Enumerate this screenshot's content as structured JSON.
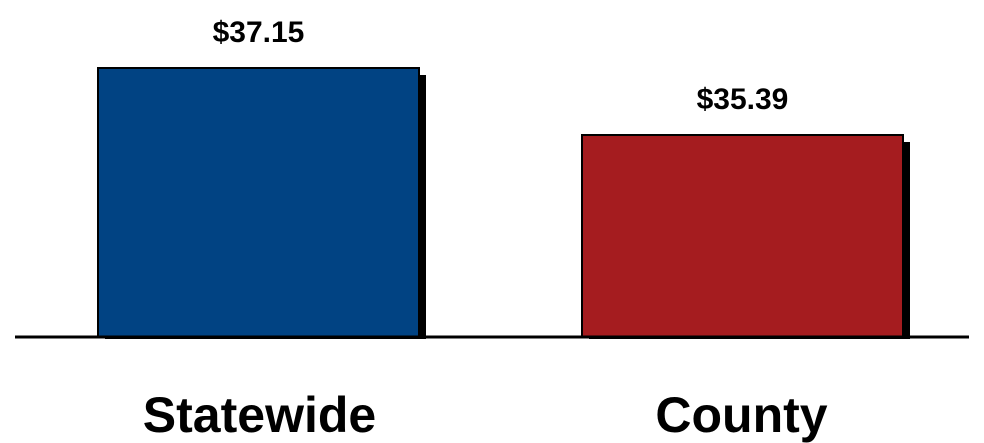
{
  "chart_data": {
    "type": "bar",
    "categories": [
      "Statewide",
      "County"
    ],
    "values": [
      37.15,
      35.39
    ],
    "value_labels": [
      "$37.15",
      "$35.39"
    ],
    "colors": [
      "#014383",
      "#a51c1f"
    ],
    "title": "",
    "xlabel": "",
    "ylabel": "",
    "grid": false,
    "legend": "none"
  }
}
